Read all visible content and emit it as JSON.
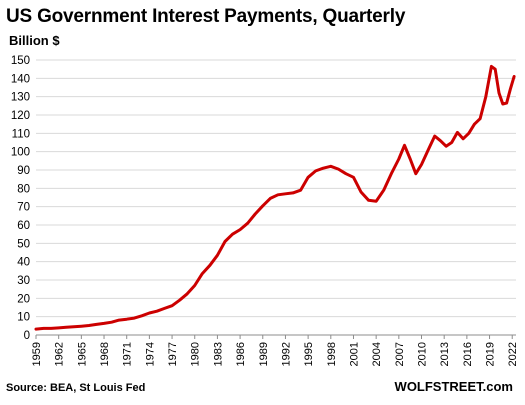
{
  "chart_data": {
    "type": "line",
    "title": "US Government Interest Payments, Quarterly",
    "ylabel": "Billion $",
    "xlabel": "",
    "x_tick_labels": [
      "1959",
      "1962",
      "1965",
      "1968",
      "1971",
      "1974",
      "1977",
      "1980",
      "1983",
      "1986",
      "1989",
      "1992",
      "1995",
      "1998",
      "2001",
      "2004",
      "2007",
      "2010",
      "2013",
      "2016",
      "2019",
      "2022"
    ],
    "y_ticks": [
      0,
      10,
      20,
      30,
      40,
      50,
      60,
      70,
      80,
      90,
      100,
      110,
      120,
      130,
      140,
      150
    ],
    "ylim": [
      0,
      150
    ],
    "xlim": [
      1959,
      2022.5
    ],
    "grid": "horizontal",
    "legend": "none",
    "series_color": "#cc0000",
    "series": [
      {
        "values": [
          [
            1959,
            3.2
          ],
          [
            1960,
            3.6
          ],
          [
            1961,
            3.6
          ],
          [
            1962,
            3.9
          ],
          [
            1963,
            4.2
          ],
          [
            1964,
            4.5
          ],
          [
            1965,
            4.8
          ],
          [
            1966,
            5.2
          ],
          [
            1967,
            5.8
          ],
          [
            1968,
            6.3
          ],
          [
            1969,
            7.0
          ],
          [
            1970,
            8.1
          ],
          [
            1971,
            8.6
          ],
          [
            1972,
            9.2
          ],
          [
            1973,
            10.5
          ],
          [
            1974,
            12.0
          ],
          [
            1975,
            13.0
          ],
          [
            1976,
            14.5
          ],
          [
            1977,
            16.0
          ],
          [
            1978,
            19.0
          ],
          [
            1979,
            22.5
          ],
          [
            1980,
            27.0
          ],
          [
            1981,
            33.5
          ],
          [
            1982,
            38.0
          ],
          [
            1983,
            43.5
          ],
          [
            1984,
            51.0
          ],
          [
            1985,
            55.0
          ],
          [
            1986,
            57.5
          ],
          [
            1987,
            61.0
          ],
          [
            1988,
            66.0
          ],
          [
            1989,
            70.5
          ],
          [
            1990,
            74.5
          ],
          [
            1991,
            76.5
          ],
          [
            1992,
            77.0
          ],
          [
            1993,
            77.5
          ],
          [
            1994,
            79.0
          ],
          [
            1995,
            86.0
          ],
          [
            1996,
            89.5
          ],
          [
            1997,
            91.0
          ],
          [
            1998,
            92.0
          ],
          [
            1999,
            90.5
          ],
          [
            2000,
            88.0
          ],
          [
            2001,
            86.0
          ],
          [
            2002,
            78.0
          ],
          [
            2003,
            73.5
          ],
          [
            2004,
            73.0
          ],
          [
            2005,
            79.0
          ],
          [
            2006,
            88.0
          ],
          [
            2007,
            96.0
          ],
          [
            2007.75,
            103.5
          ],
          [
            2008.5,
            96.0
          ],
          [
            2009.25,
            88.0
          ],
          [
            2010,
            93.0
          ],
          [
            2011,
            102.0
          ],
          [
            2011.75,
            108.5
          ],
          [
            2012.5,
            106.0
          ],
          [
            2013.25,
            103.0
          ],
          [
            2014,
            105.0
          ],
          [
            2014.75,
            110.5
          ],
          [
            2015.5,
            107.0
          ],
          [
            2016.25,
            110.0
          ],
          [
            2017,
            115.0
          ],
          [
            2017.75,
            118.0
          ],
          [
            2018.5,
            130.0
          ],
          [
            2019.25,
            146.5
          ],
          [
            2019.75,
            145.0
          ],
          [
            2020.25,
            132.0
          ],
          [
            2020.75,
            126.0
          ],
          [
            2021.25,
            126.5
          ],
          [
            2021.75,
            134.0
          ],
          [
            2022.25,
            141.0
          ]
        ]
      }
    ]
  },
  "source_text": "Source: BEA, St Louis Fed",
  "brand_text": "WOLFSTREET.com"
}
